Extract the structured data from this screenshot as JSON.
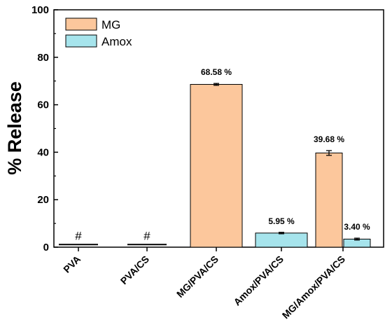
{
  "chart_data": {
    "type": "bar",
    "title": "",
    "xlabel": "",
    "ylabel": "% Release",
    "ylim": [
      0,
      100
    ],
    "yticks": [
      0,
      20,
      40,
      60,
      80,
      100
    ],
    "grid": false,
    "legend_position": "top-left",
    "categories": [
      "PVA",
      "PVA/CS",
      "MG/PVA/CS",
      "Amox/PVA/CS",
      "MG/Amox/PVA/CS"
    ],
    "series": [
      {
        "name": "MG",
        "color": "#FCC79C",
        "values": [
          null,
          null,
          68.58,
          null,
          39.68
        ],
        "errors": [
          null,
          null,
          0.4,
          null,
          1.0
        ],
        "labels": [
          "",
          "",
          "68.58 %",
          "",
          "39.68 %"
        ]
      },
      {
        "name": "Amox",
        "color": "#A6E4EC",
        "values": [
          null,
          null,
          null,
          5.95,
          3.4
        ],
        "errors": [
          null,
          null,
          null,
          0.3,
          0.4
        ],
        "labels": [
          "",
          "",
          "",
          "5.95 %",
          "3.40 %"
        ]
      }
    ],
    "markers": [
      {
        "category": "PVA",
        "value": 1.1,
        "label": "#"
      },
      {
        "category": "PVA/CS",
        "value": 1.1,
        "label": "#"
      }
    ]
  }
}
